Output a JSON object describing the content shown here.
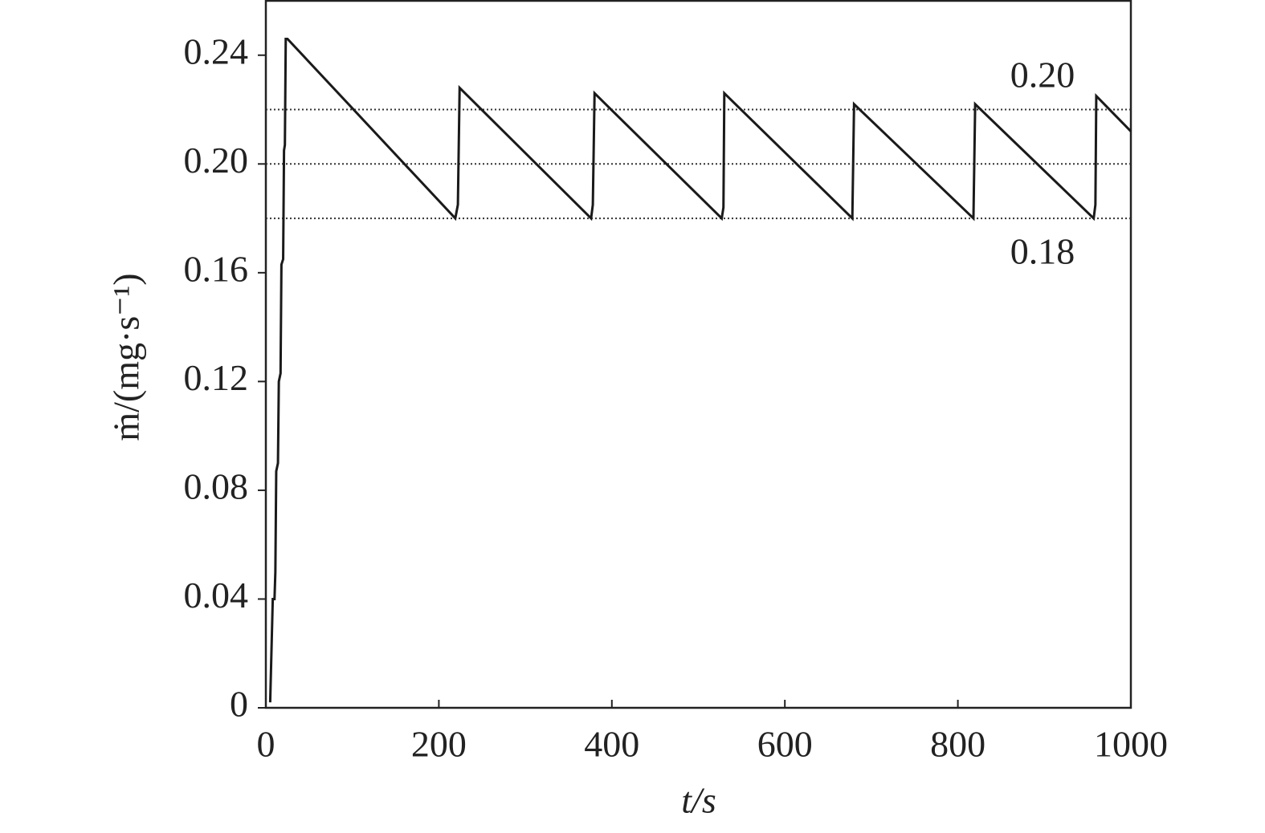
{
  "chart_data": {
    "type": "line",
    "x_label": "t/s",
    "y_label": "ṁ/(mg·s⁻¹)",
    "xlim": [
      0,
      1000
    ],
    "ylim": [
      0,
      0.26
    ],
    "xticks": [
      0,
      200,
      400,
      600,
      800,
      1000
    ],
    "yticks": [
      0,
      0.04,
      0.08,
      0.12,
      0.16,
      {
        "value": 0.2,
        "label": "0.20"
      },
      0.24
    ],
    "reference_lines": [
      0.22,
      0.2,
      0.18
    ],
    "annotations": [
      "0.20",
      "0.18"
    ],
    "series": [
      {
        "color": "#1a1a1a",
        "x": [
          5,
          8,
          10,
          11,
          12,
          14,
          15,
          17,
          18,
          20,
          21,
          22,
          23,
          25,
          219,
          222,
          224,
          376,
          378,
          380,
          527,
          529,
          530,
          678,
          680,
          818,
          820,
          957,
          959,
          960,
          1000
        ],
        "values": [
          0.002,
          0.04,
          0.04,
          0.05,
          0.087,
          0.09,
          0.12,
          0.123,
          0.163,
          0.165,
          0.205,
          0.207,
          0.246,
          0.246,
          0.18,
          0.185,
          0.228,
          0.18,
          0.185,
          0.226,
          0.18,
          0.184,
          0.226,
          0.18,
          0.222,
          0.18,
          0.222,
          0.18,
          0.185,
          0.225,
          0.212
        ]
      }
    ]
  }
}
